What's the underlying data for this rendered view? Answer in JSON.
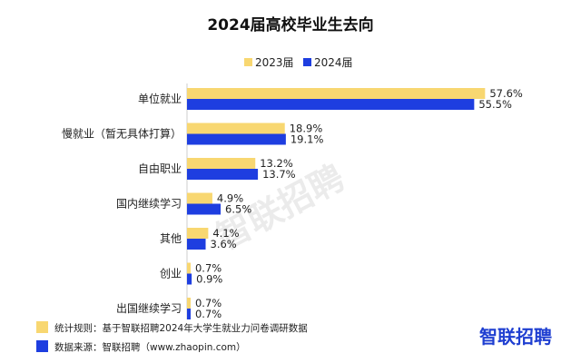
{
  "colors": {
    "series_2023": "#f8d771",
    "series_2024": "#1e3ee0",
    "brand": "#1f3fd1"
  },
  "chart_data": {
    "type": "bar",
    "orientation": "horizontal",
    "title": "2024届高校毕业生去向",
    "categories": [
      "单位就业",
      "慢就业（暂无具体打算）",
      "自由职业",
      "国内继续学习",
      "其他",
      "创业",
      "出国继续学习"
    ],
    "series": [
      {
        "name": "2023届",
        "values": [
          57.6,
          18.9,
          13.2,
          4.9,
          4.1,
          0.7,
          0.7
        ]
      },
      {
        "name": "2024届",
        "values": [
          55.5,
          19.1,
          13.7,
          6.5,
          3.6,
          0.9,
          0.7
        ]
      }
    ],
    "value_labels": [
      [
        "57.6%",
        "18.9%",
        "13.2%",
        "4.9%",
        "4.1%",
        "0.7%",
        "0.7%"
      ],
      [
        "55.5%",
        "19.1%",
        "13.7%",
        "6.5%",
        "3.6%",
        "0.9%",
        "0.7%"
      ]
    ],
    "unit": "%",
    "xlim": [
      0,
      60
    ],
    "legend_position": "top-center"
  },
  "footer": {
    "note": "统计规则：基于智联招聘2024年大学生就业力问卷调研数据",
    "source": "数据来源：智联招聘（www.zhaopin.com）"
  },
  "brand": {
    "logo_text": "智联招聘",
    "watermark_text": "智联招聘"
  }
}
